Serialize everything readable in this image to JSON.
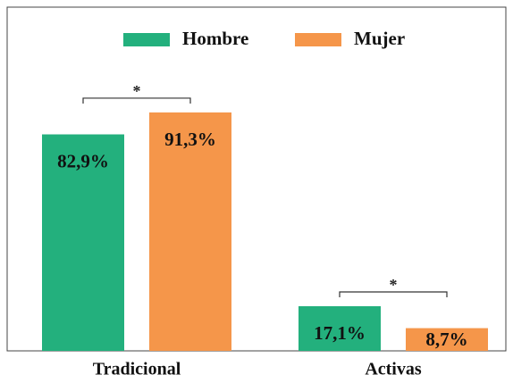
{
  "chart_data": {
    "type": "bar",
    "categories": [
      "Tradicional",
      "Activas"
    ],
    "series": [
      {
        "name": "Hombre",
        "color": "#23b07d",
        "values": [
          82.9,
          17.1
        ],
        "value_labels": [
          "82,9%",
          "17,1%"
        ]
      },
      {
        "name": "Mujer",
        "color": "#f5964a",
        "values": [
          91.3,
          8.7
        ],
        "value_labels": [
          "91,3%",
          "8,7%"
        ]
      }
    ],
    "annotations": [
      "*",
      "*"
    ]
  }
}
